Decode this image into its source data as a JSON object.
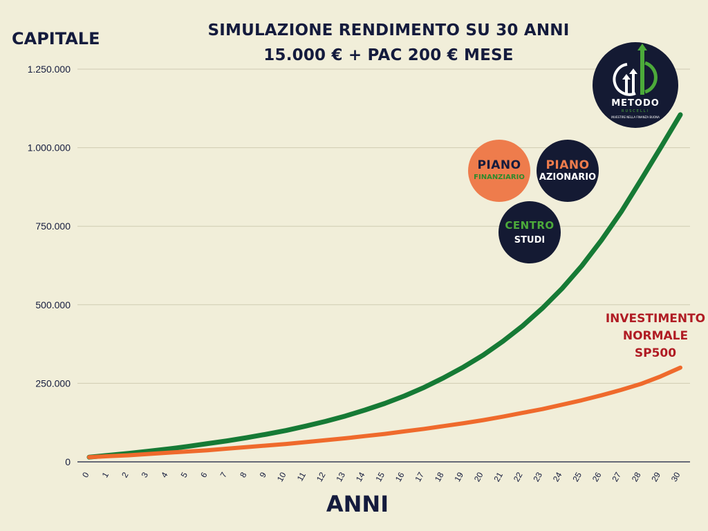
{
  "chart_data": {
    "type": "line",
    "title": "SIMULAZIONE RENDIMENTO SU 30 ANNI",
    "subtitle": "15.000 € + PAC 200 € MESE",
    "xlabel": "ANNI",
    "ylabel": "CAPITALE",
    "ylim": [
      0,
      1250000
    ],
    "yticks": [
      0,
      250000,
      500000,
      750000,
      1000000,
      1250000
    ],
    "ytick_labels": [
      "0",
      "250.000",
      "500.000",
      "750.000",
      "1.000.000",
      "1.250.000"
    ],
    "x": [
      0,
      1,
      2,
      3,
      4,
      5,
      6,
      7,
      8,
      9,
      10,
      11,
      12,
      13,
      14,
      15,
      16,
      17,
      18,
      19,
      20,
      21,
      22,
      23,
      24,
      25,
      26,
      27,
      28,
      29,
      30
    ],
    "x_tick_labels": [
      "0",
      "1",
      "2",
      "3",
      "4",
      "5",
      "6",
      "7",
      "8",
      "9",
      "10",
      "11",
      "12",
      "13",
      "14",
      "15",
      "16",
      "17",
      "18",
      "19",
      "20",
      "21",
      "22",
      "23",
      "24",
      "25",
      "26",
      "27",
      "28",
      "29",
      "30"
    ],
    "grid": "horizontal",
    "series": [
      {
        "color": "#167a35",
        "values": [
          15000,
          21000,
          27000,
          34000,
          41000,
          49000,
          58000,
          67000,
          77000,
          88000,
          100000,
          114000,
          129000,
          146000,
          165000,
          186000,
          210000,
          237000,
          268000,
          302000,
          340000,
          384000,
          433000,
          489000,
          552000,
          624000,
          706000,
          796000,
          897000,
          1000000,
          1105000
        ]
      },
      {
        "name": "INVESTIMENTO NORMALE SP500",
        "color": "#ef6a2c",
        "values": [
          15000,
          18000,
          21000,
          25000,
          29000,
          33000,
          37000,
          42000,
          47000,
          52000,
          57000,
          63000,
          69000,
          75000,
          82000,
          89000,
          97000,
          105000,
          114000,
          123000,
          133000,
          144000,
          156000,
          168000,
          182000,
          196000,
          212000,
          229000,
          248000,
          272000,
          300000
        ]
      }
    ],
    "annotations": [
      "INVESTIMENTO",
      "NORMALE",
      "SP500"
    ]
  },
  "badges": {
    "piano_finanziario": {
      "top": "PIANO",
      "bottom": "FINANZIARIO",
      "bg": "#ee7c4c",
      "top_color": "#141b3d",
      "bottom_color": "#2e8a2c"
    },
    "piano_azionario": {
      "top": "PIANO",
      "bottom": "AZIONARIO",
      "bg": "#141a33",
      "top_color": "#ee7c4c",
      "bottom_color": "#ffffff"
    },
    "centro_studi": {
      "top": "CENTRO",
      "bottom": "STUDI",
      "bg": "#141a33",
      "top_color": "#4caa3a",
      "bottom_color": "#ffffff"
    }
  },
  "logo": {
    "name": "METODO",
    "sub": "RUSCELLI",
    "tagline": "INVESTIRE NELLA FINANZA BUONA",
    "bg": "#141a33",
    "accent": "#4caa3a"
  },
  "colors": {
    "background": "#f1eed9",
    "text": "#141b3d",
    "gridline": "#cfcbb2",
    "annotation": "#b01c24"
  }
}
